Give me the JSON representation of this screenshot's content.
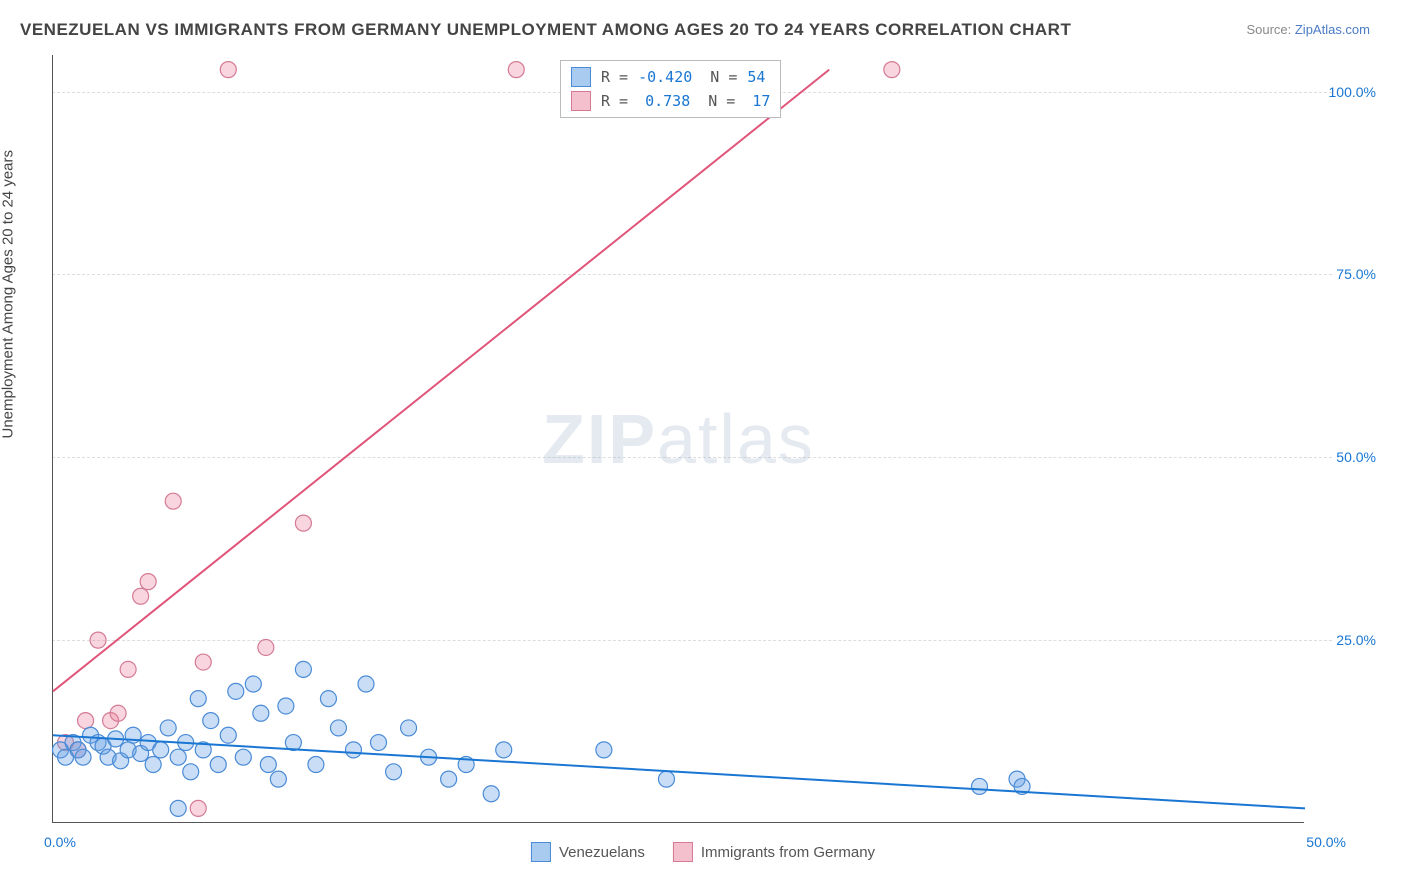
{
  "title": "VENEZUELAN VS IMMIGRANTS FROM GERMANY UNEMPLOYMENT AMONG AGES 20 TO 24 YEARS CORRELATION CHART",
  "source_prefix": "Source: ",
  "source_link": "ZipAtlas.com",
  "ylabel": "Unemployment Among Ages 20 to 24 years",
  "watermark_bold": "ZIP",
  "watermark_light": "atlas",
  "chart": {
    "type": "scatter",
    "xlim": [
      0,
      50
    ],
    "ylim": [
      0,
      105
    ],
    "y_ticks": [
      25,
      50,
      75,
      100
    ],
    "y_tick_labels": [
      "25.0%",
      "50.0%",
      "75.0%",
      "100.0%"
    ],
    "y_tick_color": "#1976d2",
    "x_ticks": [
      0,
      50
    ],
    "x_tick_labels": [
      "0.0%",
      "50.0%"
    ],
    "grid_color": "#dddddd",
    "background_color": "#ffffff",
    "marker_radius": 8,
    "marker_stroke_width": 1.2,
    "line_width": 2
  },
  "series_a": {
    "label": "Venezuelans",
    "fill_color": "rgba(100,160,230,0.35)",
    "stroke_color": "#4a8bd6",
    "swatch_fill": "#a8cbef",
    "swatch_border": "#4a8bd6",
    "R": "-0.420",
    "N": "54",
    "regression": {
      "x1": 0,
      "y1": 12,
      "x2": 50,
      "y2": 2
    },
    "line_color": "#1976d2",
    "points": [
      [
        0.3,
        10
      ],
      [
        0.5,
        9
      ],
      [
        0.8,
        11
      ],
      [
        1,
        10
      ],
      [
        1.2,
        9
      ],
      [
        1.5,
        12
      ],
      [
        1.8,
        11
      ],
      [
        2,
        10.5
      ],
      [
        2.2,
        9
      ],
      [
        2.5,
        11.5
      ],
      [
        2.7,
        8.5
      ],
      [
        3,
        10
      ],
      [
        3.2,
        12
      ],
      [
        3.5,
        9.5
      ],
      [
        3.8,
        11
      ],
      [
        4,
        8
      ],
      [
        4.3,
        10
      ],
      [
        4.6,
        13
      ],
      [
        5,
        9
      ],
      [
        5.3,
        11
      ],
      [
        5.5,
        7
      ],
      [
        5.8,
        17
      ],
      [
        6,
        10
      ],
      [
        6.3,
        14
      ],
      [
        6.6,
        8
      ],
      [
        7,
        12
      ],
      [
        7.3,
        18
      ],
      [
        7.6,
        9
      ],
      [
        8,
        19
      ],
      [
        8.3,
        15
      ],
      [
        8.6,
        8
      ],
      [
        9,
        6
      ],
      [
        9.3,
        16
      ],
      [
        9.6,
        11
      ],
      [
        10,
        21
      ],
      [
        10.5,
        8
      ],
      [
        11,
        17
      ],
      [
        11.4,
        13
      ],
      [
        12,
        10
      ],
      [
        12.5,
        19
      ],
      [
        13,
        11
      ],
      [
        13.6,
        7
      ],
      [
        14.2,
        13
      ],
      [
        15,
        9
      ],
      [
        15.8,
        6
      ],
      [
        16.5,
        8
      ],
      [
        17.5,
        4
      ],
      [
        18,
        10
      ],
      [
        22,
        10
      ],
      [
        24.5,
        6
      ],
      [
        37,
        5
      ],
      [
        38.5,
        6
      ],
      [
        38.7,
        5
      ],
      [
        5,
        2
      ]
    ]
  },
  "series_b": {
    "label": "Immigrants from Germany",
    "fill_color": "rgba(235,120,150,0.3)",
    "stroke_color": "#d47a94",
    "swatch_fill": "#f4c0ce",
    "swatch_border": "#d47a94",
    "R": "0.738",
    "N": "17",
    "regression": {
      "x1": 0,
      "y1": 18,
      "x2": 31,
      "y2": 103
    },
    "line_color": "#e0557a",
    "points": [
      [
        0.5,
        11
      ],
      [
        1,
        10
      ],
      [
        1.3,
        14
      ],
      [
        1.8,
        25
      ],
      [
        2.3,
        14
      ],
      [
        2.6,
        15
      ],
      [
        3,
        21
      ],
      [
        3.5,
        31
      ],
      [
        3.8,
        33
      ],
      [
        4.8,
        44
      ],
      [
        5.8,
        2
      ],
      [
        6,
        22
      ],
      [
        7,
        103
      ],
      [
        8.5,
        24
      ],
      [
        10,
        41
      ],
      [
        18.5,
        103
      ],
      [
        33.5,
        103
      ]
    ]
  },
  "correlation_box": {
    "rows": [
      {
        "series": "a",
        "R_label": "R =",
        "N_label": "N ="
      },
      {
        "series": "b",
        "R_label": "R =",
        "N_label": "N ="
      }
    ]
  }
}
